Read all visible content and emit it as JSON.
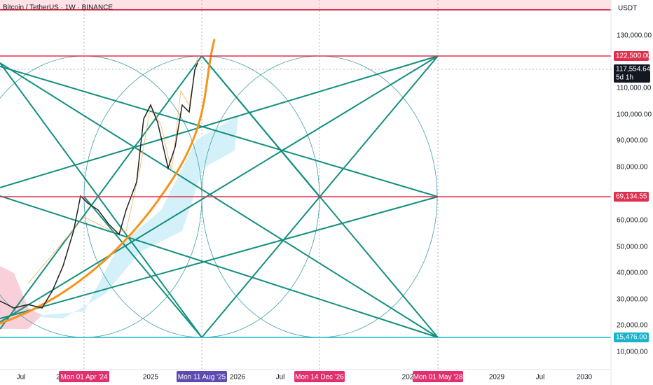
{
  "header": {
    "title": "Bitcoin / TetherUS · 1W · BINANCE"
  },
  "price_axis": {
    "unit": "USDT",
    "labels": [
      "130,000.00",
      "110,000.00",
      "100,000.00",
      "90,000.00",
      "80,000.00",
      "60,000.00",
      "50,000.00",
      "40,000.00",
      "30,000.00",
      "20,000.00",
      "10,000.00"
    ]
  },
  "price_levels": [
    "122,500.00",
    "69,134.55",
    "15,476.00"
  ],
  "current_price": {
    "price": "117,554.64",
    "countdown": "5d 1h"
  },
  "time_axis": {
    "labels": [
      "Jul",
      "2",
      "2025",
      "2026",
      "Jul",
      "202",
      "2029",
      "Jul",
      "2030"
    ]
  },
  "time_markers": [
    "Mon 01 Apr '24",
    "Mon 11 Aug '25",
    "Mon 14 Dec '26",
    "Mon 01 May '28"
  ]
}
